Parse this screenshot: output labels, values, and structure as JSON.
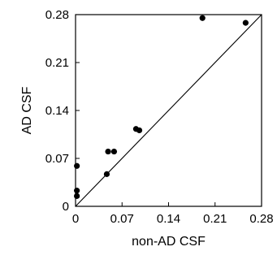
{
  "chart_data": {
    "type": "scatter",
    "title": "",
    "xlabel": "non-AD CSF",
    "ylabel": "AD CSF",
    "xlim": [
      0,
      0.28
    ],
    "ylim": [
      0,
      0.28
    ],
    "xticks": [
      0,
      0.07,
      0.14,
      0.21,
      0.28
    ],
    "yticks": [
      0,
      0.07,
      0.14,
      0.21,
      0.28
    ],
    "xtick_labels": [
      "0",
      "0.07",
      "0.14",
      "0.21",
      "0.28"
    ],
    "ytick_labels": [
      "0",
      "0.07",
      "0.14",
      "0.21",
      "0.28"
    ],
    "grid": false,
    "reference_line": "y = x",
    "points": [
      {
        "x": 0.002,
        "y": 0.059
      },
      {
        "x": 0.002,
        "y": 0.023
      },
      {
        "x": 0.002,
        "y": 0.015
      },
      {
        "x": 0.047,
        "y": 0.047
      },
      {
        "x": 0.049,
        "y": 0.08
      },
      {
        "x": 0.058,
        "y": 0.08
      },
      {
        "x": 0.091,
        "y": 0.113
      },
      {
        "x": 0.096,
        "y": 0.111
      },
      {
        "x": 0.191,
        "y": 0.275
      },
      {
        "x": 0.256,
        "y": 0.268
      }
    ],
    "colors": {
      "marker": "#000000",
      "axis": "#000000"
    }
  }
}
